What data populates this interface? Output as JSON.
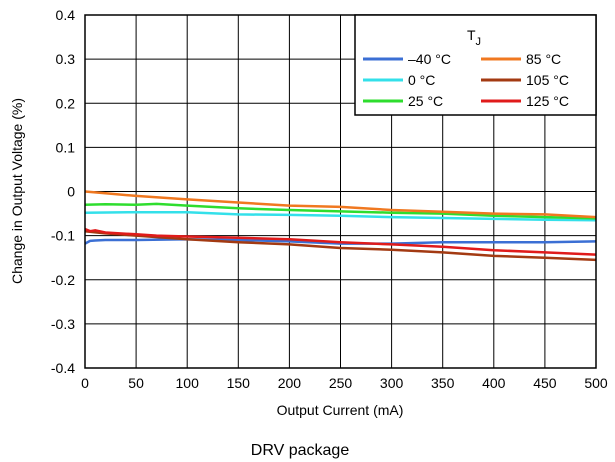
{
  "chart_data": {
    "type": "line",
    "title": "",
    "xlabel": "Output Current (mA)",
    "ylabel": "Change in Output Voltage (%)",
    "caption": "DRV package",
    "xlim": [
      0,
      500
    ],
    "ylim": [
      -0.4,
      0.4
    ],
    "x_ticks": [
      "0",
      "50",
      "100",
      "150",
      "200",
      "250",
      "300",
      "350",
      "400",
      "450",
      "500"
    ],
    "y_ticks": [
      "0.4",
      "0.3",
      "0.2",
      "0.1",
      "0",
      "-0.1",
      "-0.2",
      "-0.3",
      "-0.4"
    ],
    "grid": true,
    "legend": {
      "title": "T",
      "title_subscript": "J",
      "placement": "top-right"
    },
    "series": [
      {
        "name": "–40 °C",
        "color": "#3b6fd4",
        "x": [
          0,
          5,
          10,
          20,
          50,
          100,
          150,
          200,
          250,
          300,
          350,
          400,
          450,
          500
        ],
        "y": [
          -0.118,
          -0.112,
          -0.111,
          -0.11,
          -0.11,
          -0.108,
          -0.11,
          -0.113,
          -0.118,
          -0.118,
          -0.115,
          -0.115,
          -0.115,
          -0.113
        ]
      },
      {
        "name": "0 °C",
        "color": "#33e0ea",
        "x": [
          0,
          50,
          100,
          150,
          200,
          250,
          300,
          350,
          400,
          450,
          500
        ],
        "y": [
          -0.048,
          -0.047,
          -0.047,
          -0.052,
          -0.053,
          -0.055,
          -0.058,
          -0.06,
          -0.062,
          -0.064,
          -0.065
        ]
      },
      {
        "name": "25 °C",
        "color": "#2edd2e",
        "x": [
          0,
          20,
          50,
          70,
          100,
          150,
          200,
          250,
          300,
          350,
          400,
          450,
          500
        ],
        "y": [
          -0.03,
          -0.029,
          -0.03,
          -0.028,
          -0.032,
          -0.038,
          -0.042,
          -0.045,
          -0.048,
          -0.05,
          -0.055,
          -0.058,
          -0.061
        ]
      },
      {
        "name": "85 °C",
        "color": "#f07820",
        "x": [
          0,
          20,
          50,
          100,
          150,
          200,
          250,
          300,
          350,
          400,
          450,
          500
        ],
        "y": [
          0.0,
          -0.004,
          -0.01,
          -0.018,
          -0.025,
          -0.032,
          -0.035,
          -0.042,
          -0.046,
          -0.05,
          -0.052,
          -0.058
        ]
      },
      {
        "name": "105 °C",
        "color": "#a33a12",
        "x": [
          0,
          20,
          50,
          100,
          150,
          200,
          250,
          300,
          350,
          400,
          450,
          500
        ],
        "y": [
          -0.09,
          -0.095,
          -0.1,
          -0.108,
          -0.115,
          -0.12,
          -0.128,
          -0.132,
          -0.138,
          -0.146,
          -0.15,
          -0.155
        ]
      },
      {
        "name": "125 °C",
        "color": "#e01b1b",
        "x": [
          0,
          5,
          10,
          20,
          50,
          70,
          100,
          150,
          200,
          250,
          300,
          350,
          400,
          450,
          500
        ],
        "y": [
          -0.085,
          -0.09,
          -0.088,
          -0.093,
          -0.097,
          -0.1,
          -0.102,
          -0.105,
          -0.108,
          -0.115,
          -0.12,
          -0.125,
          -0.133,
          -0.138,
          -0.143
        ]
      }
    ]
  }
}
